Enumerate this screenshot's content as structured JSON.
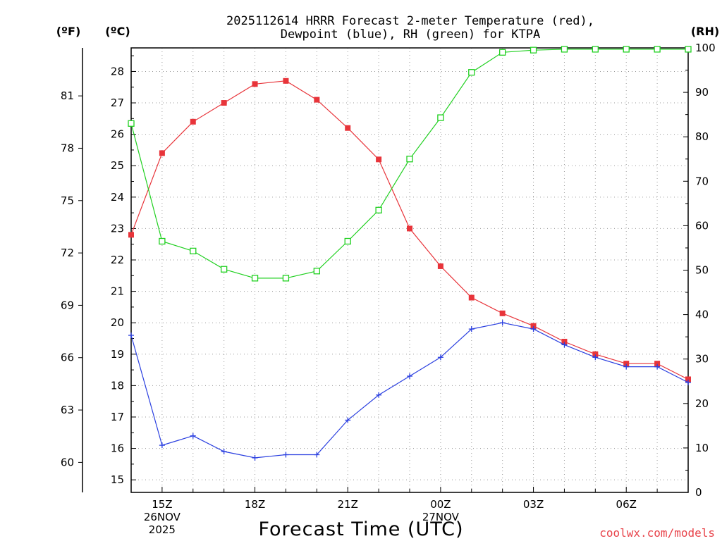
{
  "chart_data": {
    "type": "line",
    "title_lines": [
      "2025112614 HRRR Forecast 2-meter Temperature (red),",
      "Dewpoint (blue), RH (green) for KTPA"
    ],
    "unit_labels": {
      "fahrenheit": "(ºF)",
      "celsius": "(ºC)",
      "rh": "(RH)"
    },
    "xlabel": "Forecast Time (UTC)",
    "credit": "coolwx.com/models",
    "x_hours": [
      14,
      15,
      16,
      17,
      18,
      19,
      20,
      21,
      22,
      23,
      24,
      25,
      26,
      27,
      28,
      29,
      30,
      31,
      32
    ],
    "xlim": [
      14,
      32
    ],
    "x_ticks": [
      {
        "hour": 15,
        "lines": [
          "15Z",
          "26NOV",
          "2025"
        ]
      },
      {
        "hour": 18,
        "lines": [
          "18Z"
        ]
      },
      {
        "hour": 21,
        "lines": [
          "21Z"
        ]
      },
      {
        "hour": 24,
        "lines": [
          "00Z",
          "27NOV"
        ]
      },
      {
        "hour": 27,
        "lines": [
          "03Z"
        ]
      },
      {
        "hour": 30,
        "lines": [
          "06Z"
        ]
      }
    ],
    "ylim_c": [
      14.6,
      28.75
    ],
    "y_ticks_c": [
      15,
      16,
      17,
      18,
      19,
      20,
      21,
      22,
      23,
      24,
      25,
      26,
      27,
      28
    ],
    "y_ticks_f": [
      60,
      63,
      66,
      69,
      72,
      75,
      78,
      81
    ],
    "ylim_rh": [
      0,
      100
    ],
    "y_ticks_rh": [
      0,
      10,
      20,
      30,
      40,
      50,
      60,
      70,
      80,
      90,
      100
    ],
    "series": [
      {
        "name": "2-meter Temperature",
        "unit": "C",
        "axis": "left",
        "color": "#e8343a",
        "marker": "filled-square",
        "values": [
          22.8,
          25.4,
          26.4,
          27.0,
          27.6,
          27.7,
          27.1,
          26.2,
          25.2,
          23.0,
          21.8,
          20.8,
          20.3,
          19.9,
          19.4,
          19.0,
          18.7,
          18.7,
          18.2
        ]
      },
      {
        "name": "Dewpoint",
        "unit": "C",
        "axis": "left",
        "color": "#2a3fe0",
        "marker": "plus",
        "values": [
          19.6,
          16.1,
          16.4,
          15.9,
          15.7,
          15.8,
          15.8,
          16.9,
          17.7,
          18.3,
          18.9,
          19.8,
          20.0,
          19.8,
          19.3,
          18.9,
          18.6,
          18.6,
          18.1
        ]
      },
      {
        "name": "RH",
        "unit": "%",
        "axis": "right",
        "color": "#20d020",
        "marker": "open-square",
        "values": [
          83,
          56.5,
          54.3,
          50.2,
          48.2,
          48.2,
          49.8,
          56.5,
          63.5,
          75,
          84.3,
          94.5,
          99,
          99.5,
          99.7,
          99.7,
          99.7,
          99.7,
          99.7
        ]
      }
    ]
  }
}
